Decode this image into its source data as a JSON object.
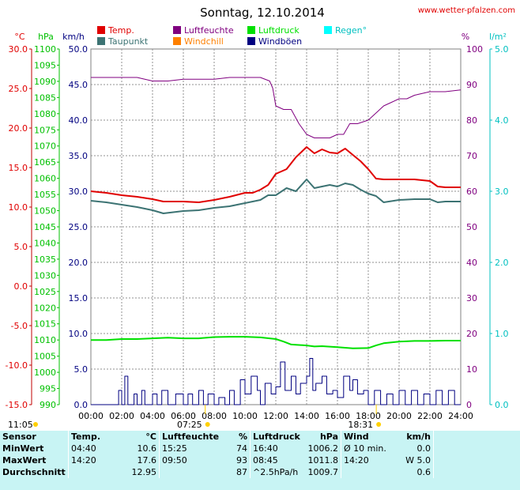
{
  "title": "Sonntag, 12.10.2014",
  "site": "www.wetter-pfalzen.com",
  "colors": {
    "temp": "#e00000",
    "dew": "#3c7373",
    "hum": "#800080",
    "pressure": "#00e000",
    "windchill": "#ff8000",
    "gusts": "#000080",
    "rain": "#00e0e0",
    "wind": "#000080"
  },
  "legend": [
    {
      "label": "Temp.",
      "color": "#e00000"
    },
    {
      "label": "Luftfeuchte",
      "color": "#800080"
    },
    {
      "label": "Luftdruck",
      "color": "#00e000"
    },
    {
      "label": "Regen°",
      "color": "#00ffff"
    },
    {
      "label": "Taupunkt",
      "color": "#3c7373"
    },
    {
      "label": "Windchill",
      "color": "#ff8000"
    },
    {
      "label": "Windböen",
      "color": "#000080"
    }
  ],
  "units": {
    "temp": "°C",
    "pressure": "hPa",
    "wind": "km/h",
    "hum": "%",
    "rain": "l/m²"
  },
  "chart_data": {
    "type": "line",
    "x_range_hours": [
      0,
      24
    ],
    "x_ticks": [
      "00:00",
      "02:00",
      "04:00",
      "06:00",
      "08:00",
      "10:00",
      "12:00",
      "14:00",
      "16:00",
      "18:00",
      "20:00",
      "22:00",
      "24:00"
    ],
    "axes": {
      "temp": {
        "ticks": [
          "30.0",
          "25.0",
          "20.0",
          "15.0",
          "10.0",
          "5.0",
          "0.0",
          "-5.0",
          "-10.0",
          "-15.0"
        ],
        "range": [
          -15,
          30
        ]
      },
      "pressure": {
        "ticks": [
          "1100",
          "1095",
          "1090",
          "1085",
          "1080",
          "1075",
          "1070",
          "1065",
          "1060",
          "1055",
          "1050",
          "1045",
          "1040",
          "1035",
          "1030",
          "1025",
          "1020",
          "1015",
          "1010",
          "1005",
          "1000",
          "995",
          "990"
        ],
        "range": [
          990,
          1100
        ]
      },
      "wind": {
        "ticks": [
          "50.0",
          "45.0",
          "40.0",
          "35.0",
          "30.0",
          "25.0",
          "20.0",
          "15.0",
          "10.0",
          "5.0",
          "0.0"
        ],
        "range": [
          0,
          50
        ]
      },
      "hum": {
        "ticks": [
          "100",
          "90",
          "80",
          "70",
          "60",
          "50",
          "40",
          "30",
          "20",
          "10",
          "0"
        ],
        "range": [
          0,
          100
        ]
      },
      "rain": {
        "ticks": [
          "5.0",
          "4.0",
          "3.0",
          "2.0",
          "1.0",
          "0.0"
        ],
        "range": [
          0,
          5
        ]
      }
    },
    "series": [
      {
        "name": "Temp.",
        "axis": "temp",
        "color": "#e00000",
        "x": [
          0,
          1,
          2,
          3,
          4,
          4.7,
          6,
          7,
          8,
          9,
          10,
          10.5,
          11,
          11.5,
          12,
          12.7,
          13.3,
          14,
          14.5,
          15,
          15.5,
          16,
          16.5,
          17,
          17.5,
          18,
          18.5,
          19,
          20,
          21,
          22,
          22.5,
          23,
          24
        ],
        "y": [
          12.0,
          11.8,
          11.5,
          11.3,
          11.0,
          10.7,
          10.7,
          10.6,
          10.9,
          11.3,
          11.8,
          11.8,
          12.2,
          12.8,
          14.2,
          14.8,
          16.3,
          17.6,
          16.8,
          17.3,
          16.9,
          16.8,
          17.4,
          16.6,
          15.8,
          14.8,
          13.6,
          13.5,
          13.5,
          13.5,
          13.3,
          12.6,
          12.5,
          12.5
        ]
      },
      {
        "name": "Taupunkt",
        "axis": "temp",
        "color": "#3c7373",
        "x": [
          0,
          1,
          2,
          3,
          4,
          4.7,
          6,
          7,
          8,
          9,
          10,
          11,
          11.5,
          12,
          12.7,
          13.3,
          14,
          14.5,
          15,
          15.5,
          16,
          16.5,
          17,
          17.5,
          18,
          18.5,
          19,
          20,
          21,
          22,
          22.5,
          23,
          24
        ],
        "y": [
          10.8,
          10.6,
          10.3,
          10.0,
          9.6,
          9.2,
          9.5,
          9.6,
          9.9,
          10.1,
          10.5,
          10.9,
          11.5,
          11.5,
          12.4,
          12.0,
          13.5,
          12.4,
          12.6,
          12.8,
          12.6,
          13.0,
          12.8,
          12.2,
          11.7,
          11.4,
          10.6,
          10.9,
          11.0,
          11.0,
          10.6,
          10.7,
          10.7
        ]
      },
      {
        "name": "Luftfeuchte",
        "axis": "hum",
        "color": "#800080",
        "x": [
          0,
          1,
          2,
          3,
          4,
          5,
          6,
          7,
          8,
          9,
          10,
          11,
          11.6,
          11.8,
          12,
          12.5,
          13,
          13.5,
          14,
          14.5,
          15,
          15.5,
          16,
          16.4,
          16.8,
          17.3,
          18,
          18.5,
          19,
          19.5,
          20,
          20.5,
          21,
          22,
          23,
          24
        ],
        "y": [
          92,
          92,
          92,
          92,
          91,
          91,
          91.5,
          91.5,
          91.5,
          92,
          92,
          92,
          91,
          89,
          84,
          83,
          83,
          79,
          76,
          75,
          75,
          75,
          76,
          76,
          79,
          79,
          80,
          82,
          84,
          85,
          86,
          86,
          87,
          88,
          88,
          88.5
        ]
      },
      {
        "name": "Luftdruck",
        "axis": "pressure",
        "color": "#00e000",
        "x": [
          0,
          1,
          2,
          3,
          4,
          5,
          6,
          7,
          8,
          9,
          10,
          11,
          12,
          12.5,
          13,
          14,
          14.5,
          15,
          16,
          17,
          18,
          18.5,
          19,
          20,
          21,
          22,
          23,
          24
        ],
        "y": [
          1010.0,
          1010.0,
          1010.3,
          1010.3,
          1010.5,
          1010.7,
          1010.5,
          1010.5,
          1010.9,
          1011.0,
          1011.0,
          1010.8,
          1010.3,
          1009.5,
          1008.6,
          1008.3,
          1008.0,
          1008.1,
          1007.8,
          1007.4,
          1007.5,
          1008.3,
          1009.0,
          1009.5,
          1009.7,
          1009.7,
          1009.8,
          1009.8
        ]
      },
      {
        "name": "Windböen",
        "axis": "wind",
        "color": "#000080",
        "x": [
          0,
          1.6,
          1.8,
          2,
          2.2,
          2.4,
          2.8,
          3,
          3.3,
          3.5,
          4,
          4.3,
          4.6,
          5,
          5.5,
          6,
          6.3,
          6.6,
          7,
          7.3,
          7.6,
          8,
          8.3,
          8.7,
          9,
          9.3,
          9.7,
          10,
          10.4,
          10.8,
          11,
          11.3,
          11.7,
          12,
          12.3,
          12.6,
          13,
          13.3,
          13.6,
          14,
          14.2,
          14.4,
          14.6,
          15,
          15.3,
          15.7,
          16,
          16.4,
          16.8,
          17,
          17.3,
          17.7,
          18,
          18.4,
          18.8,
          19.2,
          19.6,
          20,
          20.4,
          20.8,
          21.2,
          21.6,
          22,
          22.4,
          22.8,
          23.2,
          23.6,
          24
        ],
        "y": [
          0,
          0,
          2,
          0,
          4,
          0,
          1.5,
          0,
          2,
          0,
          1.5,
          0,
          2,
          0,
          1.5,
          0,
          1.5,
          0,
          2,
          0,
          1.5,
          0,
          1,
          0,
          2,
          0,
          3.5,
          1.5,
          4,
          2,
          0,
          3,
          1.5,
          2.5,
          6,
          2,
          4,
          1.5,
          3,
          4,
          6.5,
          2,
          3,
          4,
          1.5,
          2,
          1,
          4,
          2,
          3.5,
          1.5,
          2,
          0,
          2,
          0,
          1.5,
          0,
          2,
          0,
          2,
          0,
          1.5,
          0,
          2,
          0,
          2,
          0,
          0
        ]
      }
    ]
  },
  "sun": {
    "top_left": "11:05",
    "sunrise": "07:25",
    "sunset": "18:31",
    "sunrise_h": 7.42,
    "sunset_h": 18.52
  },
  "table": {
    "headers": [
      "Sensor",
      "Temp.",
      "°C",
      "Luftfeuchte",
      "%",
      "Luftdruck",
      "hPa",
      "Wind",
      "km/h"
    ],
    "rows": [
      [
        "MinWert",
        "04:40",
        "10.6",
        "15:25",
        "74",
        "16:40",
        "1006.2",
        "Ø 10 min.",
        "0.0"
      ],
      [
        "MaxWert",
        "14:20",
        "17.6",
        "09:50",
        "93",
        "08:45",
        "1011.8",
        "14:20",
        "W 5.0"
      ],
      [
        "Durchschnitt",
        "",
        "12.95",
        "",
        "87",
        "^2.5hPa/h",
        "1009.7",
        "",
        "0.6"
      ]
    ]
  }
}
